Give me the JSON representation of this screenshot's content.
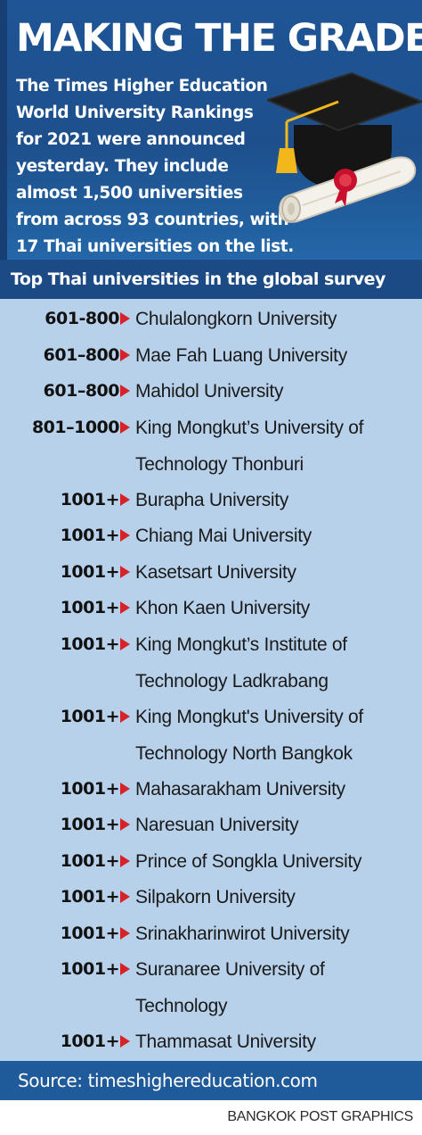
{
  "title": "MAKING THE GRADE",
  "intro_lines": [
    "The Times Higher Education",
    "World University Rankings",
    "for 2021 were announced",
    "yesterday. They include",
    "almost 1,500 universities",
    "from across 93 countries, with",
    "17 Thai universities on the list."
  ],
  "illustration": {
    "icons": [
      "graduation-cap-icon",
      "diploma-scroll-icon"
    ],
    "colors": {
      "cap": "#151515",
      "tassel": "#f2b81b",
      "seal": "#c8102e",
      "scroll": "#f4f1ea"
    }
  },
  "subheading": "Top Thai universities in the global survey",
  "marker_color": "#d8222a",
  "rankings": [
    {
      "rank": "601-800",
      "name_lines": [
        "Chulalongkorn University"
      ]
    },
    {
      "rank": "601–800",
      "name_lines": [
        "Mae Fah Luang University"
      ]
    },
    {
      "rank": "601–800",
      "name_lines": [
        "Mahidol University"
      ]
    },
    {
      "rank": "801–1000",
      "name_lines": [
        "King Mongkut’s University of",
        "Technology Thonburi"
      ]
    },
    {
      "rank": "1001+",
      "name_lines": [
        "Burapha University"
      ]
    },
    {
      "rank": "1001+",
      "name_lines": [
        "Chiang Mai University"
      ]
    },
    {
      "rank": "1001+",
      "name_lines": [
        "Kasetsart University"
      ]
    },
    {
      "rank": "1001+",
      "name_lines": [
        "Khon Kaen University"
      ]
    },
    {
      "rank": "1001+",
      "name_lines": [
        "King Mongkut’s Institute of",
        "Technology Ladkrabang"
      ]
    },
    {
      "rank": "1001+",
      "name_lines": [
        "King Mongkut's University of",
        "Technology North Bangkok"
      ]
    },
    {
      "rank": "1001+",
      "name_lines": [
        "Mahasarakham University"
      ]
    },
    {
      "rank": "1001+",
      "name_lines": [
        "Naresuan University"
      ]
    },
    {
      "rank": "1001+",
      "name_lines": [
        "Prince of Songkla University"
      ]
    },
    {
      "rank": "1001+",
      "name_lines": [
        "Silpakorn University"
      ]
    },
    {
      "rank": "1001+",
      "name_lines": [
        "Srinakharinwirot University"
      ]
    },
    {
      "rank": "1001+",
      "name_lines": [
        "Suranaree University of",
        "Technology"
      ]
    },
    {
      "rank": "1001+",
      "name_lines": [
        "Thammasat University"
      ]
    }
  ],
  "source": "Source: timeshighereducation.com",
  "credit": "BANGKOK POST GRAPHICS"
}
